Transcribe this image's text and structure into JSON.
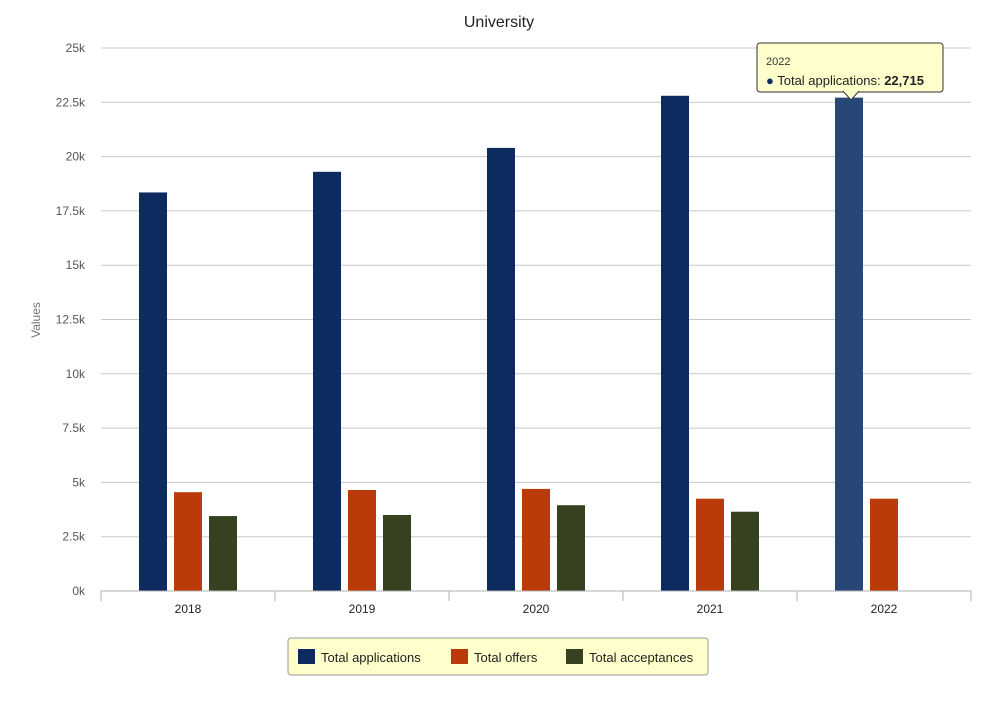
{
  "chart_data": {
    "type": "bar",
    "title": "University",
    "xlabel": "",
    "ylabel": "Values",
    "ylim": [
      0,
      25000
    ],
    "yticks": [
      "0k",
      "2.5k",
      "5k",
      "7.5k",
      "10k",
      "12.5k",
      "15k",
      "17.5k",
      "20k",
      "22.5k",
      "25k"
    ],
    "categories": [
      "2018",
      "2019",
      "2020",
      "2021",
      "2022"
    ],
    "series": [
      {
        "name": "Total applications",
        "color": "#0d2b5e",
        "values": [
          18350,
          19300,
          20400,
          22800,
          22715
        ]
      },
      {
        "name": "Total offers",
        "color": "#bb3a0a",
        "values": [
          4550,
          4650,
          4700,
          4250,
          4250
        ]
      },
      {
        "name": "Total acceptances",
        "color": "#36411f",
        "values": [
          3450,
          3500,
          3950,
          3650,
          null
        ]
      }
    ],
    "legend_position": "bottom",
    "grid": true,
    "tooltip": {
      "category": "2022",
      "label": "Total applications: ",
      "value": "22,715",
      "highlight_color": "#274777"
    }
  }
}
